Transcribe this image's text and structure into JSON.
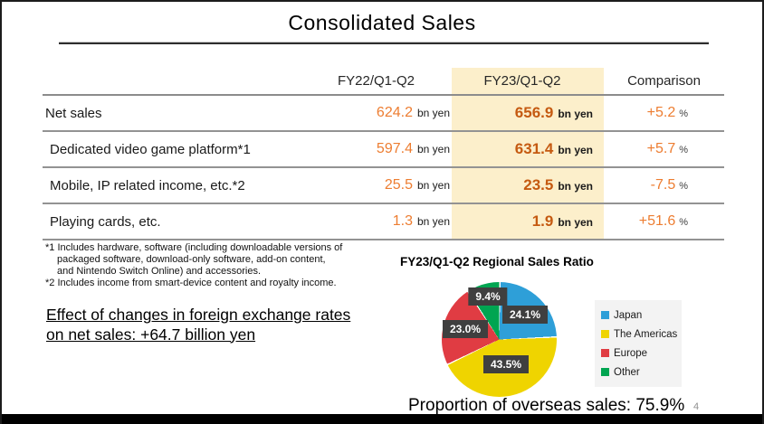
{
  "title": "Consolidated Sales",
  "table": {
    "columns": [
      "FY22/Q1-Q2",
      "FY23/Q1-Q2",
      "Comparison"
    ],
    "unit": "bn yen",
    "percent_sign": "%",
    "rows": [
      {
        "label": "Net sales",
        "fy22": "624.2",
        "fy23": "656.9",
        "comparison": "+5.2"
      },
      {
        "label": "Dedicated video game platform*1",
        "fy22": "597.4",
        "fy23": "631.4",
        "comparison": "+5.7"
      },
      {
        "label": "Mobile, IP related income, etc.*2",
        "fy22": "25.5",
        "fy23": "23.5",
        "comparison": "-7.5"
      },
      {
        "label": "Playing cards, etc.",
        "fy22": "1.3",
        "fy23": "1.9",
        "comparison": "+51.6"
      }
    ]
  },
  "footnotes": {
    "note1_line1": "*1 Includes hardware, software (including downloadable versions of",
    "note1_line2": "packaged software, download-only software, add-on content,",
    "note1_line3": "and Nintendo Switch Online) and accessories.",
    "note2": "*2 Includes income from smart-device content and royalty income."
  },
  "fx_effect": {
    "line1": "Effect of changes in foreign exchange rates",
    "line2": "on net sales: +64.7 billion yen"
  },
  "chart_data": {
    "type": "pie",
    "title": "FY23/Q1-Q2 Regional Sales Ratio",
    "labels": [
      "Japan",
      "The Americas",
      "Europe",
      "Other"
    ],
    "values": [
      24.1,
      43.5,
      23.0,
      9.4
    ],
    "value_labels": [
      "24.1%",
      "43.5%",
      "23.0%",
      "9.4%"
    ],
    "colors": [
      "#2E9FD8",
      "#EFD400",
      "#E03C43",
      "#00A551"
    ],
    "label_box_color": "#3F3F3F",
    "legend_position": "right",
    "start_angle_deg": 0,
    "direction": "clockwise"
  },
  "overseas_text": "Proportion of overseas sales: 75.9%",
  "page_number": "4",
  "highlight_color": "#FCEFCB",
  "accent_colors": {
    "fy22_value": "#ED7D31",
    "fy23_value": "#C55A11"
  }
}
